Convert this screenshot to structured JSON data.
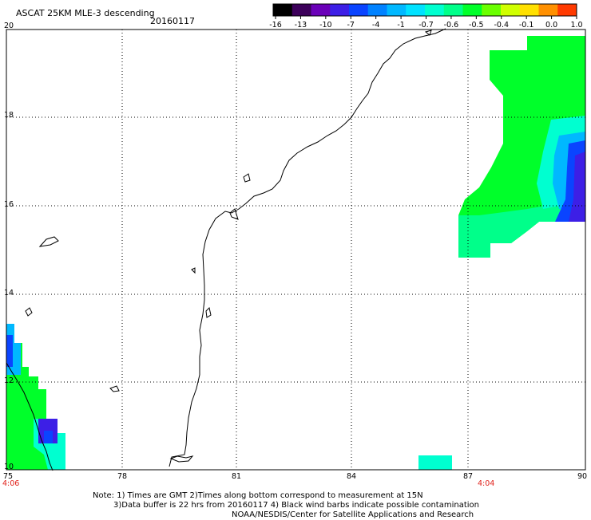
{
  "header": {
    "title": "ASCAT 25KM MLE-3 descending",
    "date": "20160117"
  },
  "colorbar": {
    "labels": [
      "-16",
      "-13",
      "-10",
      "-7",
      "-4",
      "-1",
      "-0.7",
      "-0.6",
      "-0.5",
      "-0.4",
      "-0.1",
      "0.0",
      "1.0"
    ],
    "colors": [
      "#000000",
      "#3c005a",
      "#6a00b8",
      "#3d1fe6",
      "#0a44ff",
      "#0082ff",
      "#00b8ff",
      "#00e2ff",
      "#00ffd0",
      "#00ff8a",
      "#00ff2a",
      "#6aff00",
      "#d0ff00",
      "#ffe000",
      "#ff9000",
      "#ff3a00"
    ]
  },
  "axes": {
    "x_ticks": [
      "75",
      "78",
      "81",
      "84",
      "87",
      "90"
    ],
    "y_ticks": [
      "20",
      "18",
      "16",
      "14",
      "12",
      "10"
    ],
    "xlim": [
      75,
      90
    ],
    "ylim": [
      10,
      20
    ]
  },
  "timestamps": {
    "left": "4:06",
    "right": "4:04"
  },
  "notes": {
    "line1": "Note: 1) Times are GMT 2)Times along bottom correspond to measurement at 15N",
    "line2": "3)Data buffer is 22 hrs from 20160117 4) Black wind barbs indicate possible contamination",
    "line3": "NOAA/NESDIS/Center for Satellite Applications and Research"
  }
}
